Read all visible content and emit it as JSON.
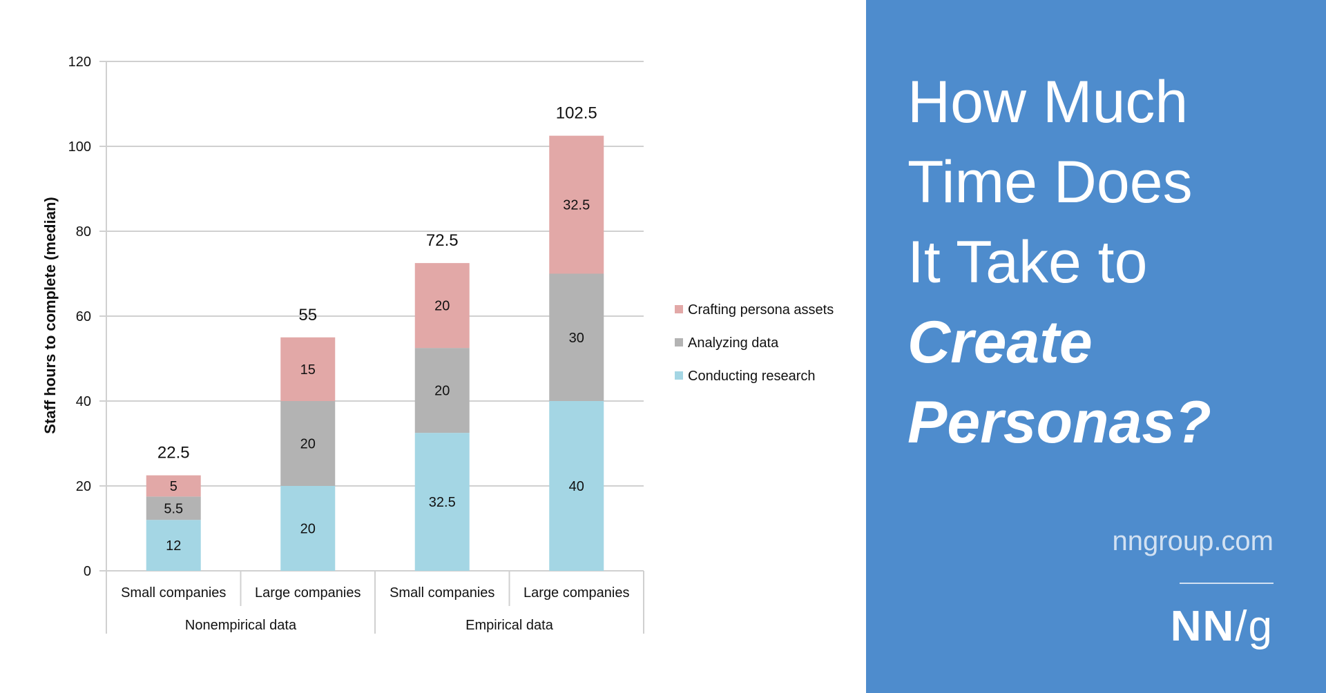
{
  "chart_data": {
    "type": "bar",
    "stacked": true,
    "ylabel": "Staff hours to complete (median)",
    "ylim": [
      0,
      120
    ],
    "yticks": [
      "0",
      "20",
      "40",
      "60",
      "80",
      "100",
      "120"
    ],
    "grid": true,
    "legend_position": "right",
    "categories": [
      "Small companies",
      "Large companies",
      "Small companies",
      "Large companies"
    ],
    "groups": [
      {
        "label": "Nonempirical data",
        "span": 2
      },
      {
        "label": "Empirical data",
        "span": 2
      }
    ],
    "series": [
      {
        "name": "Conducting research",
        "color": "#a4d6e4",
        "values": [
          12,
          20,
          32.5,
          40
        ],
        "labels": [
          "12",
          "20",
          "32.5",
          "40"
        ]
      },
      {
        "name": "Analyzing data",
        "color": "#b3b3b3",
        "values": [
          5.5,
          20,
          20,
          30
        ],
        "labels": [
          "5.5",
          "20",
          "20",
          "30"
        ]
      },
      {
        "name": "Crafting persona assets",
        "color": "#e2a8a7",
        "values": [
          5,
          15,
          20,
          32.5
        ],
        "labels": [
          "5",
          "15",
          "20",
          "32.5"
        ]
      }
    ],
    "totals": [
      "22.5",
      "55",
      "72.5",
      "102.5"
    ],
    "legend": [
      "Crafting persona assets",
      "Analyzing data",
      "Conducting research"
    ]
  },
  "panel": {
    "title_lines": [
      "How Much",
      "Time Does",
      "It Take to"
    ],
    "title_emphasis": [
      "Create",
      "Personas?"
    ],
    "site": "nngroup.com",
    "logo": "NN/g",
    "logo_main": "NN",
    "logo_tail": "/g",
    "bg": "#4e8ccd"
  }
}
